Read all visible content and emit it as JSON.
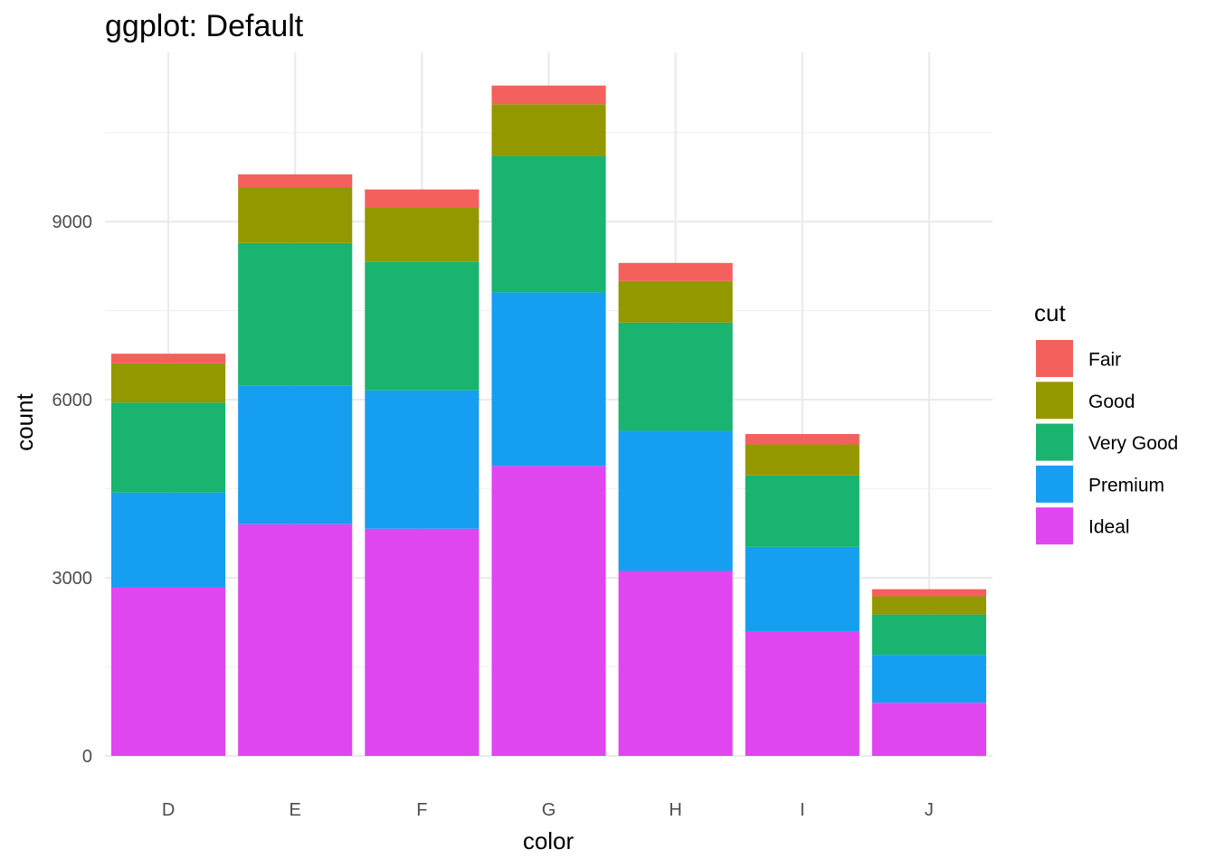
{
  "chart_data": {
    "type": "bar",
    "stacked": true,
    "title": "ggplot: Default",
    "xlabel": "color",
    "ylabel": "count",
    "categories": [
      "D",
      "E",
      "F",
      "G",
      "H",
      "I",
      "J"
    ],
    "ylim": [
      0,
      11850
    ],
    "yticks": [
      0,
      3000,
      6000,
      9000
    ],
    "grid": true,
    "legend": {
      "title": "cut",
      "position": "right",
      "order": [
        "Fair",
        "Good",
        "Very Good",
        "Premium",
        "Ideal"
      ]
    },
    "series": [
      {
        "name": "Ideal",
        "color": "#E046F0",
        "values": [
          2834,
          3903,
          3826,
          4884,
          3115,
          2093,
          896
        ]
      },
      {
        "name": "Premium",
        "color": "#169FF0",
        "values": [
          1603,
          2337,
          2331,
          2924,
          2360,
          1428,
          808
        ]
      },
      {
        "name": "Very Good",
        "color": "#19B46F",
        "values": [
          1513,
          2400,
          2164,
          2299,
          1824,
          1204,
          678
        ]
      },
      {
        "name": "Good",
        "color": "#949800",
        "values": [
          662,
          933,
          909,
          871,
          702,
          522,
          307
        ]
      },
      {
        "name": "Fair",
        "color": "#F4605C",
        "values": [
          163,
          224,
          312,
          314,
          303,
          175,
          119
        ]
      }
    ]
  }
}
